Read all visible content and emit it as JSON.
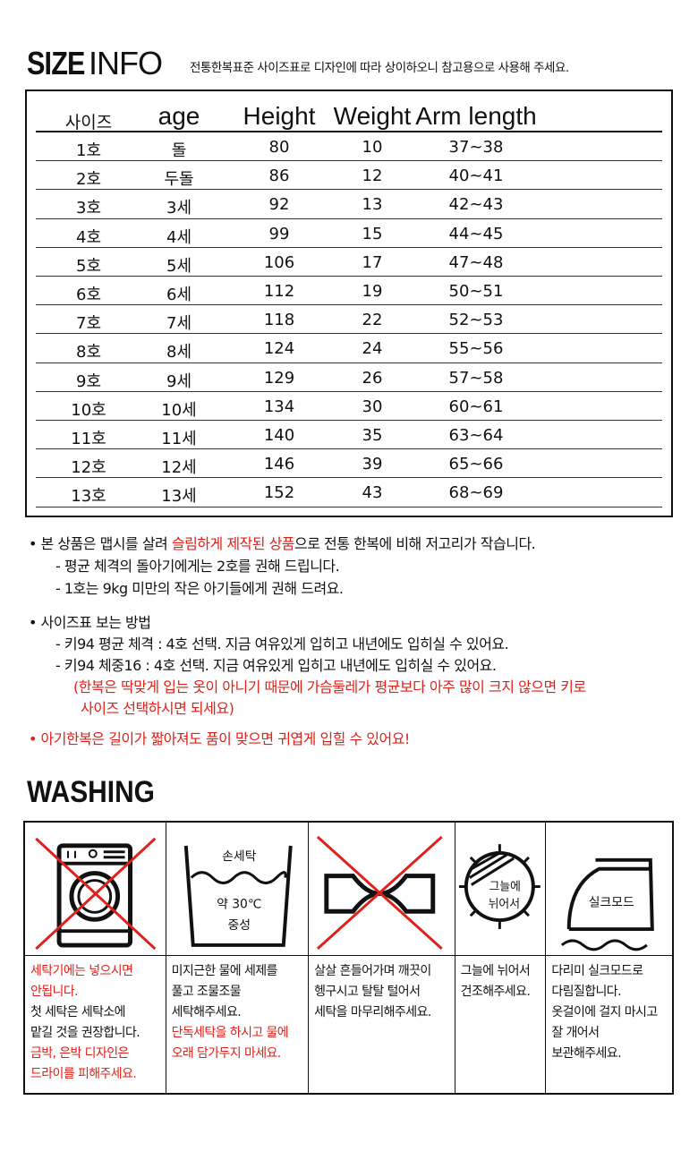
{
  "header": {
    "title_bold": "SIZE",
    "title_light": "INFO",
    "subtitle": "전통한복표준 사이즈표로 디자인에 따라 상이하오니 참고용으로 사용해 주세요."
  },
  "size_table": {
    "columns": [
      "사이즈",
      "age",
      "Height",
      "Weight",
      "Arm length"
    ],
    "rows": [
      [
        "1호",
        "돌",
        "80",
        "10",
        "37~38"
      ],
      [
        "2호",
        "두돌",
        "86",
        "12",
        "40~41"
      ],
      [
        "3호",
        "3세",
        "92",
        "13",
        "42~43"
      ],
      [
        "4호",
        "4세",
        "99",
        "15",
        "44~45"
      ],
      [
        "5호",
        "5세",
        "106",
        "17",
        "47~48"
      ],
      [
        "6호",
        "6세",
        "112",
        "19",
        "50~51"
      ],
      [
        "7호",
        "7세",
        "118",
        "22",
        "52~53"
      ],
      [
        "8호",
        "8세",
        "124",
        "24",
        "55~56"
      ],
      [
        "9호",
        "9세",
        "129",
        "26",
        "57~58"
      ],
      [
        "10호",
        "10세",
        "134",
        "30",
        "60~61"
      ],
      [
        "11호",
        "11세",
        "140",
        "35",
        "63~64"
      ],
      [
        "12호",
        "12세",
        "146",
        "39",
        "65~66"
      ],
      [
        "13호",
        "13세",
        "152",
        "43",
        "68~69"
      ]
    ]
  },
  "notes": {
    "n1_a": "• 본 상품은 맵시를 살려 ",
    "n1_red": "슬림하게 제작된 상품",
    "n1_b": "으로 전통 한복에 비해 저고리가 작습니다.",
    "n1_sub1": "- 평균 체격의 돌아기에게는 2호를 권해 드립니다.",
    "n1_sub2": "- 1호는 9kg 미만의 작은 아기들에게 권해 드려요.",
    "n2": "• 사이즈표 보는 방법",
    "n2_sub1": "- 키94 평균 체격 : 4호 선택. 지금 여유있게 입히고 내년에도 입히실 수 있어요.",
    "n2_sub2": "- 키94 체중16 : 4호 선택. 지금 여유있게 입히고 내년에도 입히실 수 있어요.",
    "n2_red1": "(한복은 딱맞게 입는 옷이 아니기 때문에 가슴둘레가 평균보다 아주 많이 크지 않으면 키로",
    "n2_red2": "사이즈 선택하시면 되세요)",
    "n3": "• 아기한복은 길이가 짧아져도 품이 맞으면 귀엽게 입힐 수 있어요!"
  },
  "washing": {
    "title": "WASHING",
    "icon_labels": {
      "hand_wash": "손세탁",
      "temp": "약 30℃",
      "neutral": "중성",
      "shade1": "그늘에",
      "shade2": "뉘어서",
      "silk": "실크모드"
    },
    "cols": [
      {
        "icon": "no-machine-wash-icon",
        "lines": [
          {
            "t": "세탁기에는 넣으시면",
            "red": true
          },
          {
            "t": "안됩니다.",
            "red": true
          },
          {
            "t": "첫 세탁은 세탁소에",
            "red": false
          },
          {
            "t": "맡길 것을 권장합니다.",
            "red": false
          },
          {
            "t": "금박, 은박 디자인은",
            "red": true
          },
          {
            "t": "드라이를 피해주세요.",
            "red": true
          }
        ]
      },
      {
        "icon": "hand-wash-icon",
        "lines": [
          {
            "t": "미지근한 물에 세제를",
            "red": false
          },
          {
            "t": "풀고 조물조물",
            "red": false
          },
          {
            "t": "세탁해주세요.",
            "red": false
          },
          {
            "t": "단독세탁을 하시고 물에",
            "red": true
          },
          {
            "t": "오래 담가두지 마세요.",
            "red": true
          }
        ]
      },
      {
        "icon": "no-wring-icon",
        "lines": [
          {
            "t": "살살 흔들어가며 깨끗이",
            "red": false
          },
          {
            "t": "헹구시고 탈탈 털어서",
            "red": false
          },
          {
            "t": "세탁을 마무리해주세요.",
            "red": false
          }
        ]
      },
      {
        "icon": "shade-dry-flat-icon",
        "lines": [
          {
            "t": "그늘에 뉘어서",
            "red": false
          },
          {
            "t": "건조해주세요.",
            "red": false
          }
        ]
      },
      {
        "icon": "iron-silk-icon",
        "lines": [
          {
            "t": "다리미 실크모드로",
            "red": false
          },
          {
            "t": "다림질합니다.",
            "red": false
          },
          {
            "t": "옷걸이에 걸지 마시고",
            "red": false
          },
          {
            "t": "잘 개어서",
            "red": false
          },
          {
            "t": "보관해주세요.",
            "red": false
          }
        ]
      }
    ]
  },
  "colors": {
    "red": "#e0201a",
    "text": "#111111"
  }
}
